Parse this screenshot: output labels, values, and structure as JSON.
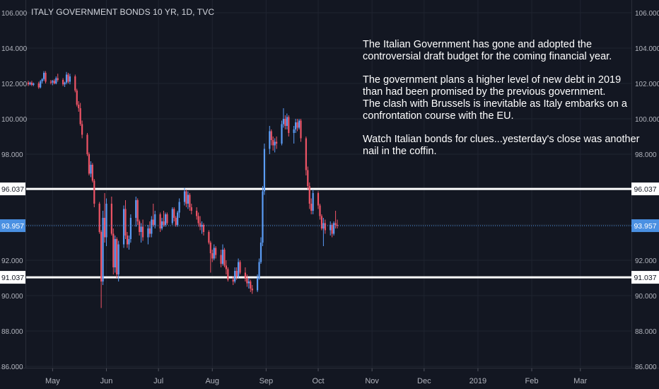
{
  "header": {
    "title": "ITALY GOVERNMENT BONDS 10 YR, 1D, TVC"
  },
  "annotation": {
    "paragraphs": [
      "The Italian Government has gone and adopted the controversial draft budget for the coming financial year.",
      "The government plans a higher level of new debt in 2019 than had been promised by the previous government.\nThe clash with Brussels is inevitable as Italy embarks on a confrontation course with the EU.",
      "Watch Italian bonds for clues...yesterday's close was another nail in the coffin."
    ]
  },
  "chart_data": {
    "type": "candlestick",
    "title": "ITALY GOVERNMENT BONDS 10 YR, 1D, TVC",
    "ylim": [
      86.0,
      106.0
    ],
    "y_ticks": [
      "106.000",
      "104.000",
      "102.000",
      "100.000",
      "98.000",
      "96.000",
      "94.000",
      "92.000",
      "90.000",
      "88.000",
      "86.000"
    ],
    "x_ticks": [
      "May",
      "Jun",
      "Jul",
      "Aug",
      "Sep",
      "Oct",
      "Nov",
      "Dec",
      "2019",
      "Feb",
      "Mar"
    ],
    "horizontal_lines": [
      {
        "label": "96.037",
        "value": 96.037,
        "style": "solid",
        "color": "#ffffff"
      },
      {
        "label": "91.037",
        "value": 91.037,
        "style": "solid",
        "color": "#ffffff"
      }
    ],
    "current_price": {
      "label": "93.957",
      "value": 93.957,
      "color": "#4a90e2"
    },
    "colors": {
      "up": "#5b9cf6",
      "down": "#ef5466",
      "background": "#131722",
      "grid": "#1f2430",
      "text": "#b2b5be"
    },
    "series": [
      {
        "date": "2018-04-17",
        "o": 102.05,
        "h": 102.15,
        "l": 101.85,
        "c": 101.95
      },
      {
        "date": "2018-04-18",
        "o": 101.95,
        "h": 102.1,
        "l": 101.9,
        "c": 102.05
      },
      {
        "date": "2018-04-19",
        "o": 102.05,
        "h": 102.15,
        "l": 101.85,
        "c": 101.92
      },
      {
        "date": "2018-04-20",
        "o": 101.92,
        "h": 102.05,
        "l": 101.85,
        "c": 102.0
      },
      {
        "date": "2018-04-23",
        "o": 102.0,
        "h": 102.1,
        "l": 101.7,
        "c": 101.78
      },
      {
        "date": "2018-04-24",
        "o": 101.78,
        "h": 102.2,
        "l": 101.72,
        "c": 102.12
      },
      {
        "date": "2018-04-25",
        "o": 102.12,
        "h": 102.3,
        "l": 102.0,
        "c": 102.25
      },
      {
        "date": "2018-04-26",
        "o": 102.25,
        "h": 102.7,
        "l": 102.15,
        "c": 102.6
      },
      {
        "date": "2018-04-27",
        "o": 102.6,
        "h": 102.7,
        "l": 102.0,
        "c": 102.1
      },
      {
        "date": "2018-04-30",
        "o": 102.1,
        "h": 102.2,
        "l": 101.95,
        "c": 102.05
      },
      {
        "date": "2018-05-01",
        "o": 102.05,
        "h": 102.2,
        "l": 101.9,
        "c": 102.15
      },
      {
        "date": "2018-05-02",
        "o": 102.15,
        "h": 102.25,
        "l": 101.95,
        "c": 102.0
      },
      {
        "date": "2018-05-03",
        "o": 102.0,
        "h": 102.4,
        "l": 101.95,
        "c": 102.3
      },
      {
        "date": "2018-05-04",
        "o": 102.3,
        "h": 102.55,
        "l": 102.1,
        "c": 102.2
      },
      {
        "date": "2018-05-07",
        "o": 102.2,
        "h": 102.3,
        "l": 101.85,
        "c": 101.95
      },
      {
        "date": "2018-05-08",
        "o": 101.95,
        "h": 102.1,
        "l": 101.8,
        "c": 102.05
      },
      {
        "date": "2018-05-09",
        "o": 102.05,
        "h": 102.65,
        "l": 101.95,
        "c": 102.5
      },
      {
        "date": "2018-05-10",
        "o": 102.5,
        "h": 102.6,
        "l": 102.0,
        "c": 102.1
      },
      {
        "date": "2018-05-11",
        "o": 102.1,
        "h": 102.55,
        "l": 101.95,
        "c": 102.4
      },
      {
        "date": "2018-05-14",
        "o": 102.4,
        "h": 102.5,
        "l": 101.5,
        "c": 101.6
      },
      {
        "date": "2018-05-15",
        "o": 101.6,
        "h": 101.7,
        "l": 100.7,
        "c": 100.8
      },
      {
        "date": "2018-05-16",
        "o": 100.8,
        "h": 101.0,
        "l": 100.4,
        "c": 100.6
      },
      {
        "date": "2018-05-17",
        "o": 100.6,
        "h": 100.9,
        "l": 99.6,
        "c": 99.7
      },
      {
        "date": "2018-05-18",
        "o": 99.7,
        "h": 99.9,
        "l": 98.9,
        "c": 99.1
      },
      {
        "date": "2018-05-21",
        "o": 99.1,
        "h": 99.2,
        "l": 97.9,
        "c": 98.0
      },
      {
        "date": "2018-05-22",
        "o": 98.0,
        "h": 98.1,
        "l": 96.8,
        "c": 96.9
      },
      {
        "date": "2018-05-23",
        "o": 96.9,
        "h": 97.6,
        "l": 96.7,
        "c": 97.4
      },
      {
        "date": "2018-05-24",
        "o": 97.4,
        "h": 97.5,
        "l": 96.4,
        "c": 96.5
      },
      {
        "date": "2018-05-25",
        "o": 96.5,
        "h": 96.6,
        "l": 95.0,
        "c": 95.2
      },
      {
        "date": "2018-05-28",
        "o": 95.2,
        "h": 95.3,
        "l": 93.5,
        "c": 93.6
      },
      {
        "date": "2018-05-29",
        "o": 93.6,
        "h": 93.7,
        "l": 89.3,
        "c": 90.8
      },
      {
        "date": "2018-05-30",
        "o": 90.8,
        "h": 94.8,
        "l": 90.6,
        "c": 94.4
      },
      {
        "date": "2018-05-31",
        "o": 94.4,
        "h": 95.8,
        "l": 93.0,
        "c": 93.3
      },
      {
        "date": "2018-06-01",
        "o": 93.3,
        "h": 95.5,
        "l": 92.8,
        "c": 95.2
      },
      {
        "date": "2018-06-04",
        "o": 95.2,
        "h": 95.6,
        "l": 93.4,
        "c": 93.5
      },
      {
        "date": "2018-06-05",
        "o": 93.5,
        "h": 93.8,
        "l": 91.2,
        "c": 91.6
      },
      {
        "date": "2018-06-06",
        "o": 91.6,
        "h": 93.4,
        "l": 91.3,
        "c": 93.2
      },
      {
        "date": "2018-06-07",
        "o": 93.2,
        "h": 93.3,
        "l": 91.0,
        "c": 91.2
      },
      {
        "date": "2018-06-08",
        "o": 91.2,
        "h": 93.1,
        "l": 90.8,
        "c": 92.9
      },
      {
        "date": "2018-06-11",
        "o": 92.9,
        "h": 95.1,
        "l": 92.7,
        "c": 94.9
      },
      {
        "date": "2018-06-12",
        "o": 94.9,
        "h": 95.4,
        "l": 93.2,
        "c": 93.4
      },
      {
        "date": "2018-06-13",
        "o": 93.4,
        "h": 93.6,
        "l": 92.7,
        "c": 92.9
      },
      {
        "date": "2018-06-14",
        "o": 92.9,
        "h": 93.4,
        "l": 92.6,
        "c": 93.2
      },
      {
        "date": "2018-06-15",
        "o": 93.2,
        "h": 94.6,
        "l": 93.0,
        "c": 94.4
      },
      {
        "date": "2018-06-18",
        "o": 94.4,
        "h": 95.6,
        "l": 93.9,
        "c": 95.4
      },
      {
        "date": "2018-06-19",
        "o": 95.4,
        "h": 95.5,
        "l": 94.0,
        "c": 94.2
      },
      {
        "date": "2018-06-20",
        "o": 94.2,
        "h": 94.3,
        "l": 93.4,
        "c": 93.6
      },
      {
        "date": "2018-06-21",
        "o": 93.6,
        "h": 94.1,
        "l": 93.0,
        "c": 93.9
      },
      {
        "date": "2018-06-22",
        "o": 93.9,
        "h": 94.3,
        "l": 93.1,
        "c": 93.3
      },
      {
        "date": "2018-06-25",
        "o": 93.3,
        "h": 94.0,
        "l": 92.9,
        "c": 93.8
      },
      {
        "date": "2018-06-26",
        "o": 93.8,
        "h": 94.2,
        "l": 93.3,
        "c": 93.5
      },
      {
        "date": "2018-06-27",
        "o": 93.5,
        "h": 94.5,
        "l": 93.3,
        "c": 94.3
      },
      {
        "date": "2018-06-28",
        "o": 94.3,
        "h": 95.2,
        "l": 93.9,
        "c": 94.0
      },
      {
        "date": "2018-06-29",
        "o": 94.0,
        "h": 94.8,
        "l": 93.8,
        "c": 94.6
      },
      {
        "date": "2018-07-02",
        "o": 94.6,
        "h": 94.7,
        "l": 93.6,
        "c": 93.8
      },
      {
        "date": "2018-07-03",
        "o": 93.8,
        "h": 94.4,
        "l": 93.7,
        "c": 94.2
      },
      {
        "date": "2018-07-04",
        "o": 94.2,
        "h": 94.8,
        "l": 93.9,
        "c": 94.0
      },
      {
        "date": "2018-07-05",
        "o": 94.0,
        "h": 94.7,
        "l": 93.9,
        "c": 94.6
      },
      {
        "date": "2018-07-06",
        "o": 94.6,
        "h": 94.7,
        "l": 94.0,
        "c": 94.1
      },
      {
        "date": "2018-07-09",
        "o": 94.1,
        "h": 95.0,
        "l": 94.0,
        "c": 94.9
      },
      {
        "date": "2018-07-10",
        "o": 94.9,
        "h": 95.0,
        "l": 94.2,
        "c": 94.4
      },
      {
        "date": "2018-07-11",
        "o": 94.4,
        "h": 94.5,
        "l": 93.9,
        "c": 94.0
      },
      {
        "date": "2018-07-12",
        "o": 94.0,
        "h": 94.8,
        "l": 93.9,
        "c": 94.7
      },
      {
        "date": "2018-07-13",
        "o": 94.7,
        "h": 95.5,
        "l": 94.4,
        "c": 95.3
      },
      {
        "date": "2018-07-16",
        "o": 95.3,
        "h": 96.1,
        "l": 95.1,
        "c": 95.9
      },
      {
        "date": "2018-07-17",
        "o": 95.9,
        "h": 96.0,
        "l": 95.0,
        "c": 95.2
      },
      {
        "date": "2018-07-18",
        "o": 95.2,
        "h": 95.9,
        "l": 94.9,
        "c": 95.7
      },
      {
        "date": "2018-07-19",
        "o": 95.7,
        "h": 95.8,
        "l": 94.8,
        "c": 95.0
      },
      {
        "date": "2018-07-20",
        "o": 95.0,
        "h": 95.2,
        "l": 94.6,
        "c": 94.8
      },
      {
        "date": "2018-07-23",
        "o": 94.8,
        "h": 95.0,
        "l": 94.3,
        "c": 94.5
      },
      {
        "date": "2018-07-24",
        "o": 94.5,
        "h": 94.7,
        "l": 93.9,
        "c": 94.1
      },
      {
        "date": "2018-07-25",
        "o": 94.1,
        "h": 94.5,
        "l": 93.7,
        "c": 93.9
      },
      {
        "date": "2018-07-26",
        "o": 93.9,
        "h": 94.2,
        "l": 93.5,
        "c": 94.0
      },
      {
        "date": "2018-07-27",
        "o": 94.0,
        "h": 94.1,
        "l": 93.4,
        "c": 93.6
      },
      {
        "date": "2018-07-30",
        "o": 93.6,
        "h": 93.7,
        "l": 92.9,
        "c": 93.0
      },
      {
        "date": "2018-07-31",
        "o": 93.0,
        "h": 93.1,
        "l": 91.3,
        "c": 92.4
      },
      {
        "date": "2018-08-01",
        "o": 92.4,
        "h": 92.6,
        "l": 91.9,
        "c": 92.1
      },
      {
        "date": "2018-08-02",
        "o": 92.1,
        "h": 92.9,
        "l": 92.0,
        "c": 92.7
      },
      {
        "date": "2018-08-03",
        "o": 92.7,
        "h": 92.8,
        "l": 92.1,
        "c": 92.3
      },
      {
        "date": "2018-08-06",
        "o": 92.3,
        "h": 92.6,
        "l": 91.6,
        "c": 91.8
      },
      {
        "date": "2018-08-07",
        "o": 91.8,
        "h": 92.9,
        "l": 91.7,
        "c": 92.6
      },
      {
        "date": "2018-08-08",
        "o": 92.6,
        "h": 92.7,
        "l": 91.6,
        "c": 91.7
      },
      {
        "date": "2018-08-09",
        "o": 91.7,
        "h": 92.0,
        "l": 91.2,
        "c": 91.5
      },
      {
        "date": "2018-08-10",
        "o": 91.5,
        "h": 91.6,
        "l": 90.8,
        "c": 90.9
      },
      {
        "date": "2018-08-13",
        "o": 90.9,
        "h": 91.1,
        "l": 90.6,
        "c": 90.8
      },
      {
        "date": "2018-08-14",
        "o": 90.8,
        "h": 91.6,
        "l": 90.7,
        "c": 91.4
      },
      {
        "date": "2018-08-15",
        "o": 91.4,
        "h": 91.6,
        "l": 90.9,
        "c": 91.1
      },
      {
        "date": "2018-08-16",
        "o": 91.1,
        "h": 92.1,
        "l": 91.0,
        "c": 91.9
      },
      {
        "date": "2018-08-17",
        "o": 91.9,
        "h": 92.0,
        "l": 91.2,
        "c": 91.3
      },
      {
        "date": "2018-08-20",
        "o": 91.3,
        "h": 91.6,
        "l": 90.8,
        "c": 91.0
      },
      {
        "date": "2018-08-21",
        "o": 91.0,
        "h": 91.2,
        "l": 90.5,
        "c": 90.7
      },
      {
        "date": "2018-08-22",
        "o": 90.7,
        "h": 91.0,
        "l": 90.4,
        "c": 90.8
      },
      {
        "date": "2018-08-23",
        "o": 90.8,
        "h": 90.9,
        "l": 90.2,
        "c": 90.4
      },
      {
        "date": "2018-08-24",
        "o": 90.4,
        "h": 90.6,
        "l": 90.1,
        "c": 90.3
      },
      {
        "date": "2018-08-27",
        "o": 90.3,
        "h": 91.2,
        "l": 90.2,
        "c": 91.0
      },
      {
        "date": "2018-08-28",
        "o": 91.0,
        "h": 92.1,
        "l": 90.9,
        "c": 91.9
      },
      {
        "date": "2018-08-29",
        "o": 91.9,
        "h": 93.3,
        "l": 91.8,
        "c": 93.0
      },
      {
        "date": "2018-08-30",
        "o": 93.0,
        "h": 96.2,
        "l": 92.8,
        "c": 95.9
      },
      {
        "date": "2018-08-31",
        "o": 95.9,
        "h": 98.6,
        "l": 95.7,
        "c": 98.3
      },
      {
        "date": "2018-09-03",
        "o": 98.3,
        "h": 99.6,
        "l": 98.0,
        "c": 99.3
      },
      {
        "date": "2018-09-04",
        "o": 99.3,
        "h": 99.4,
        "l": 98.5,
        "c": 98.8
      },
      {
        "date": "2018-09-05",
        "o": 98.8,
        "h": 99.0,
        "l": 98.2,
        "c": 98.5
      },
      {
        "date": "2018-09-06",
        "o": 98.5,
        "h": 98.9,
        "l": 98.1,
        "c": 98.7
      },
      {
        "date": "2018-09-07",
        "o": 98.7,
        "h": 99.0,
        "l": 98.3,
        "c": 98.6
      },
      {
        "date": "2018-09-10",
        "o": 98.6,
        "h": 99.9,
        "l": 98.5,
        "c": 99.7
      },
      {
        "date": "2018-09-11",
        "o": 99.7,
        "h": 100.6,
        "l": 99.5,
        "c": 100.0
      },
      {
        "date": "2018-09-12",
        "o": 100.0,
        "h": 100.2,
        "l": 99.4,
        "c": 99.6
      },
      {
        "date": "2018-09-13",
        "o": 99.6,
        "h": 100.3,
        "l": 99.4,
        "c": 100.1
      },
      {
        "date": "2018-09-14",
        "o": 100.1,
        "h": 100.2,
        "l": 99.0,
        "c": 99.2
      },
      {
        "date": "2018-09-17",
        "o": 99.2,
        "h": 99.6,
        "l": 98.6,
        "c": 99.4
      },
      {
        "date": "2018-09-18",
        "o": 99.4,
        "h": 100.0,
        "l": 99.2,
        "c": 99.8
      },
      {
        "date": "2018-09-19",
        "o": 99.8,
        "h": 100.0,
        "l": 99.3,
        "c": 99.5
      },
      {
        "date": "2018-09-20",
        "o": 99.5,
        "h": 100.0,
        "l": 99.4,
        "c": 99.9
      },
      {
        "date": "2018-09-21",
        "o": 99.9,
        "h": 100.0,
        "l": 98.7,
        "c": 98.9
      },
      {
        "date": "2018-09-24",
        "o": 98.9,
        "h": 99.0,
        "l": 96.8,
        "c": 97.1
      },
      {
        "date": "2018-09-25",
        "o": 97.1,
        "h": 97.3,
        "l": 96.0,
        "c": 96.2
      },
      {
        "date": "2018-09-26",
        "o": 96.2,
        "h": 96.4,
        "l": 94.9,
        "c": 95.2
      },
      {
        "date": "2018-09-27",
        "o": 95.2,
        "h": 95.5,
        "l": 94.6,
        "c": 94.8
      },
      {
        "date": "2018-09-28",
        "o": 94.8,
        "h": 96.0,
        "l": 94.6,
        "c": 95.8
      },
      {
        "date": "2018-10-01",
        "o": 95.8,
        "h": 95.9,
        "l": 94.9,
        "c": 95.1
      },
      {
        "date": "2018-10-02",
        "o": 95.1,
        "h": 95.2,
        "l": 94.3,
        "c": 94.5
      },
      {
        "date": "2018-10-03",
        "o": 94.5,
        "h": 94.6,
        "l": 93.7,
        "c": 93.8
      },
      {
        "date": "2018-10-04",
        "o": 93.8,
        "h": 94.4,
        "l": 92.8,
        "c": 94.1
      },
      {
        "date": "2018-10-05",
        "o": 94.1,
        "h": 94.3,
        "l": 93.5,
        "c": 93.7
      },
      {
        "date": "2018-10-08",
        "o": 93.7,
        "h": 94.2,
        "l": 93.4,
        "c": 94.0
      },
      {
        "date": "2018-10-09",
        "o": 94.0,
        "h": 94.1,
        "l": 93.3,
        "c": 93.5
      },
      {
        "date": "2018-10-10",
        "o": 93.5,
        "h": 94.2,
        "l": 93.4,
        "c": 94.1
      },
      {
        "date": "2018-10-11",
        "o": 94.1,
        "h": 94.8,
        "l": 93.8,
        "c": 94.0
      },
      {
        "date": "2018-10-12",
        "o": 94.0,
        "h": 94.3,
        "l": 93.8,
        "c": 93.957
      }
    ]
  }
}
